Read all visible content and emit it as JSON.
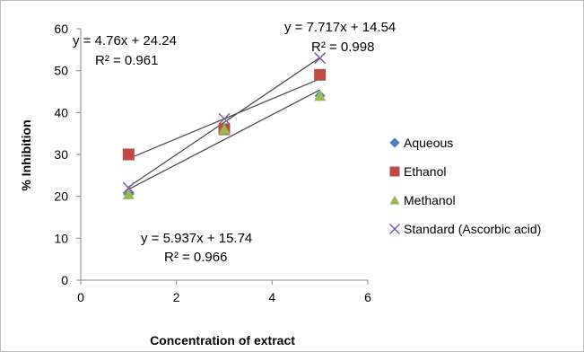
{
  "chart_data": {
    "type": "scatter",
    "xlabel": "Concentration of extract",
    "ylabel": "% Inhibition",
    "xlim": [
      0,
      6
    ],
    "ylim": [
      0,
      60
    ],
    "xticks": [
      0,
      2,
      4,
      6
    ],
    "yticks": [
      0,
      10,
      20,
      30,
      40,
      50,
      60
    ],
    "grid": false,
    "legend_position": "right",
    "series": [
      {
        "name": "Aqueous",
        "marker": "diamond",
        "color": "#4a7ebb",
        "x": [
          1,
          3,
          5
        ],
        "y": [
          20.5,
          36,
          44
        ]
      },
      {
        "name": "Ethanol",
        "marker": "square",
        "color": "#be4b48",
        "x": [
          1,
          3,
          5
        ],
        "y": [
          30,
          36,
          49
        ]
      },
      {
        "name": "Methanol",
        "marker": "triangle",
        "color": "#98b954",
        "x": [
          1,
          3,
          5
        ],
        "y": [
          20.5,
          36,
          44
        ]
      },
      {
        "name": "Standard (Ascorbic acid)",
        "marker": "cross",
        "color": "#7d60a0",
        "x": [
          1,
          3,
          5
        ],
        "y": [
          22,
          38.5,
          53
        ]
      }
    ],
    "trendlines": [
      {
        "slope": 4.76,
        "intercept": 24.24,
        "equation": "y = 4.76x + 24.24",
        "r2": "R² = 0.961"
      },
      {
        "slope": 7.717,
        "intercept": 14.54,
        "equation": "y = 7.717x + 14.54",
        "r2": "R² = 0.998"
      },
      {
        "slope": 5.937,
        "intercept": 15.74,
        "equation": "y = 5.937x + 15.74",
        "r2": "R² = 0.966"
      }
    ]
  }
}
